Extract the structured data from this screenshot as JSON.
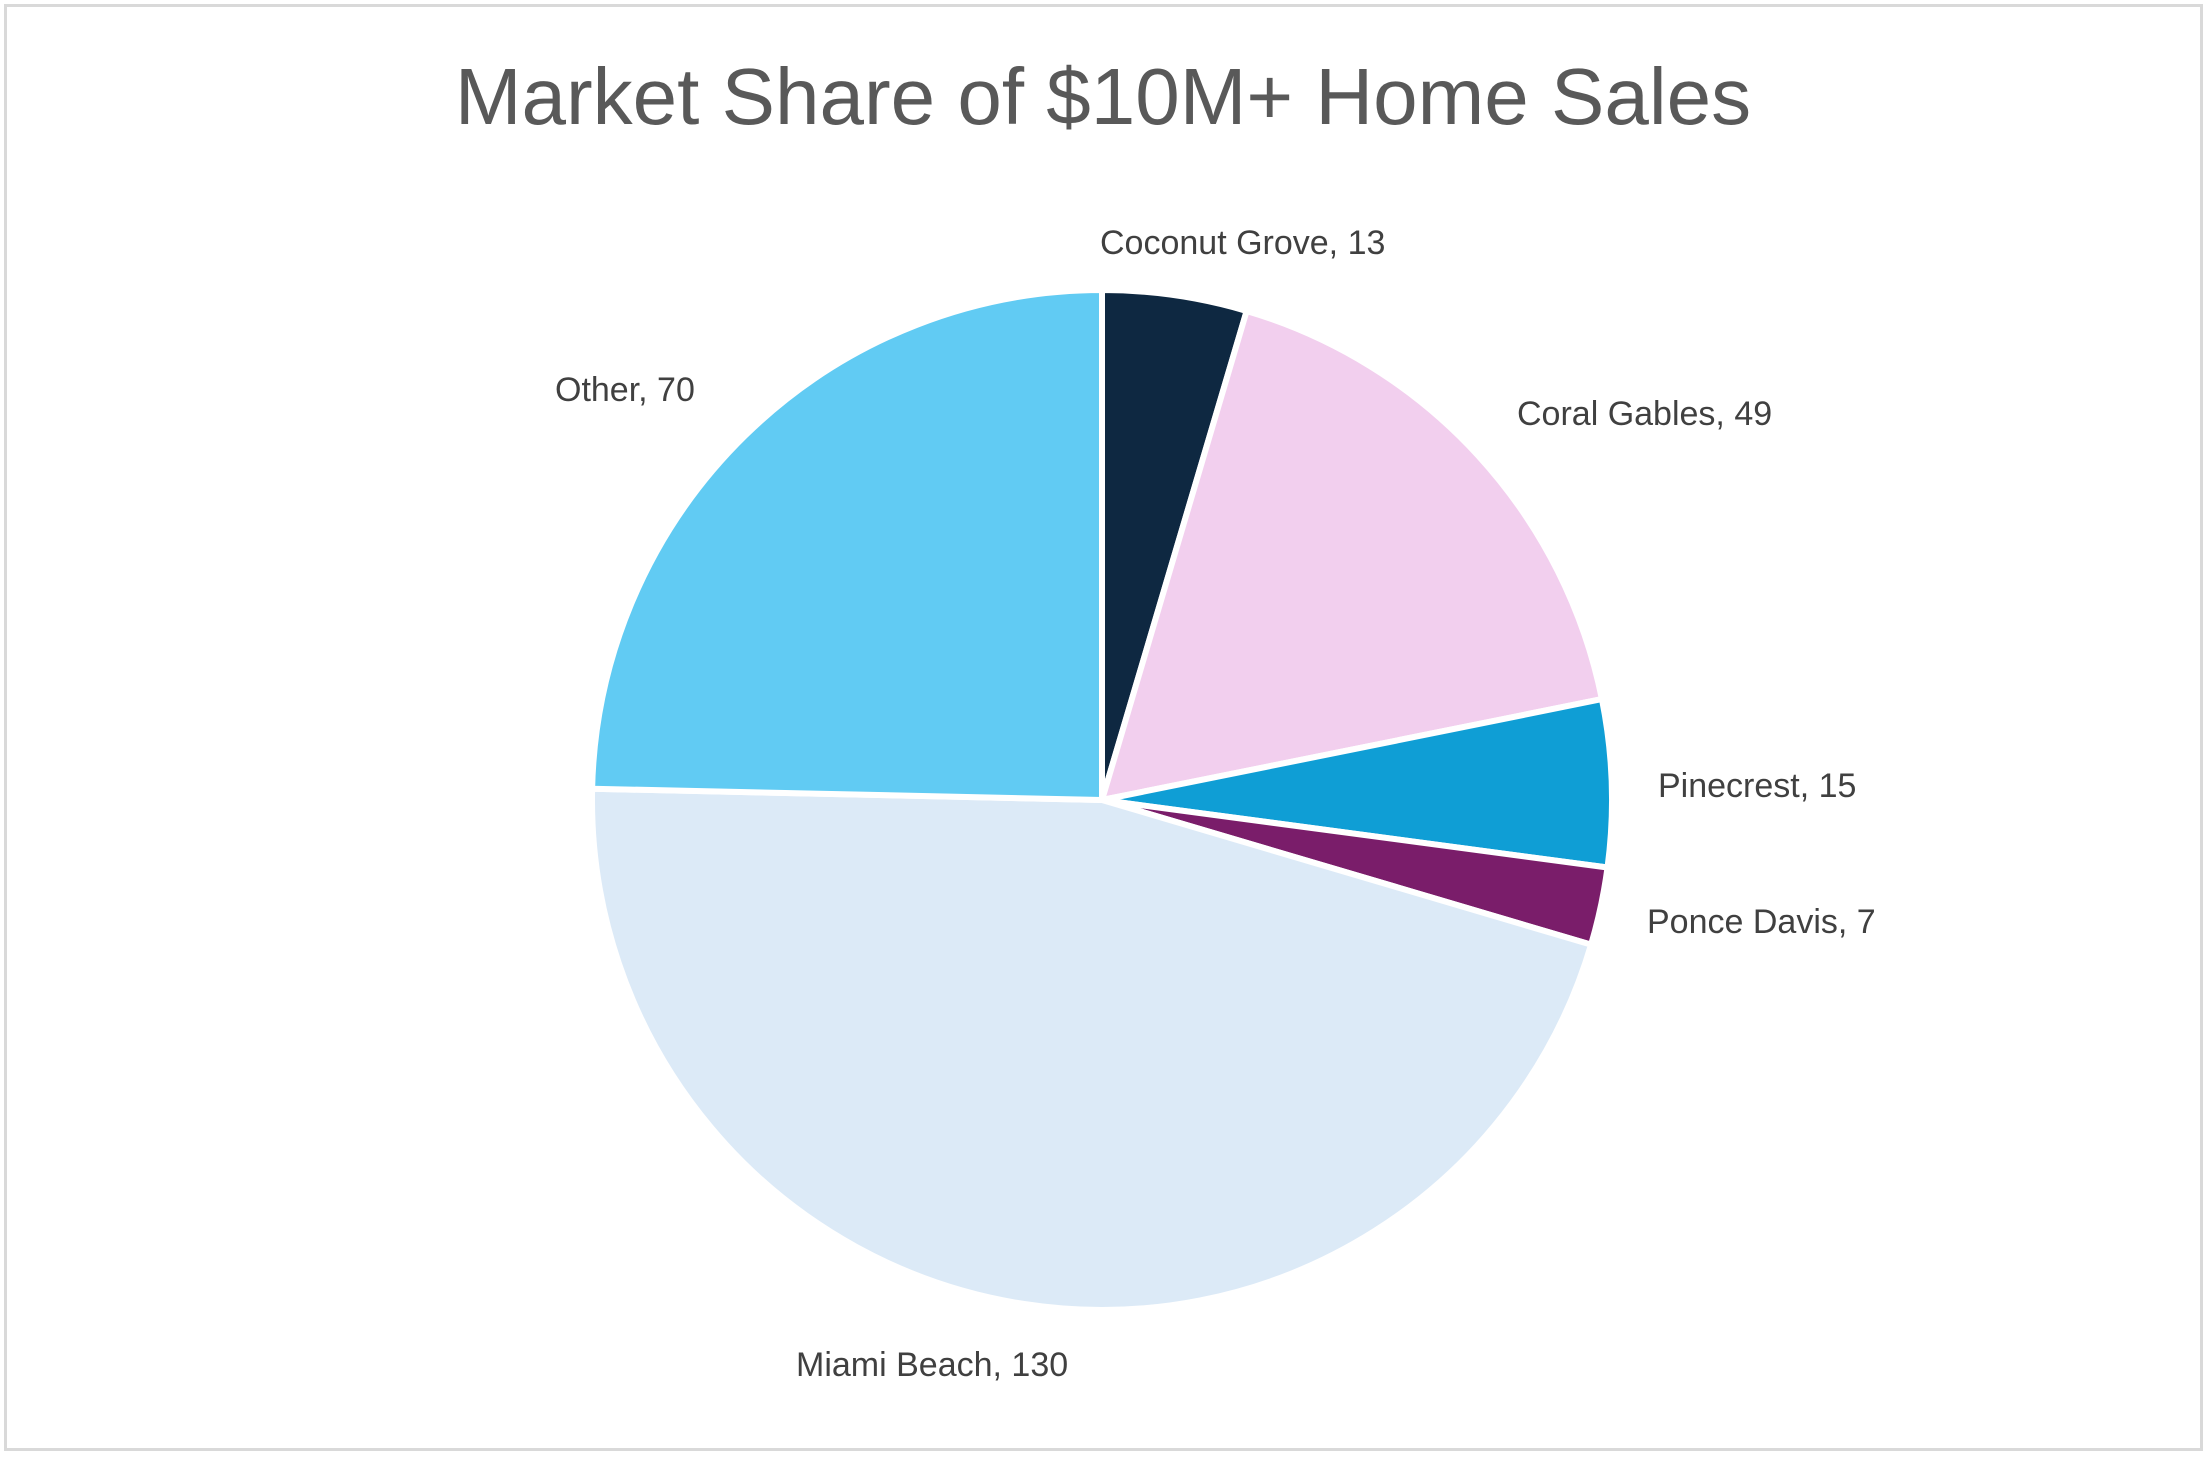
{
  "chart_data": {
    "type": "pie",
    "title": "Market Share of $10M+ Home Sales",
    "start_angle": "12 o'clock",
    "direction": "clockwise",
    "label_format": "category, value",
    "slices": [
      {
        "label": "Coconut Grove",
        "value": 13,
        "color": "#0e2841"
      },
      {
        "label": "Coral Gables",
        "value": 49,
        "color": "#f2cfee"
      },
      {
        "label": "Pinecrest",
        "value": 15,
        "color": "#0f9ed5"
      },
      {
        "label": "Ponce Davis",
        "value": 7,
        "color": "#7a1d6a"
      },
      {
        "label": "Miami Beach",
        "value": 130,
        "color": "#dceaf7"
      },
      {
        "label": "Other",
        "value": 70,
        "color": "#61cbf3"
      }
    ]
  }
}
